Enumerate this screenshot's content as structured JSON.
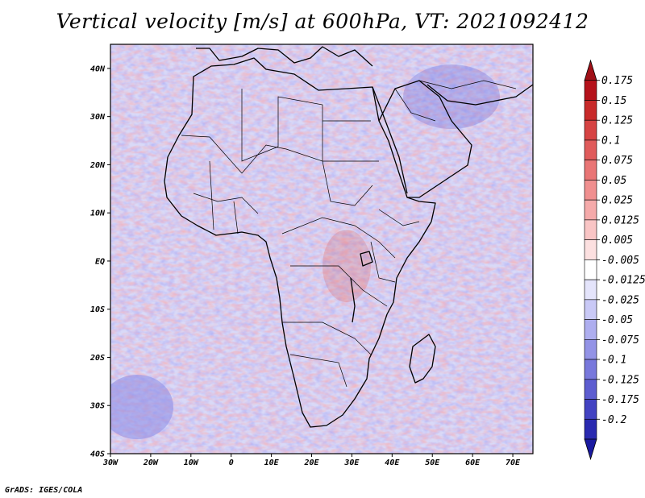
{
  "title": "Vertical velocity [m/s] at 600hPa, VT: 2021092412",
  "footer": "GrADS: IGES/COLA",
  "map": {
    "lon_range": [
      -30,
      75
    ],
    "lat_range": [
      -40,
      45
    ],
    "lon_ticks": [
      {
        "value": -30,
        "label": "30W"
      },
      {
        "value": -20,
        "label": "20W"
      },
      {
        "value": -10,
        "label": "10W"
      },
      {
        "value": 0,
        "label": "0"
      },
      {
        "value": 10,
        "label": "10E"
      },
      {
        "value": 20,
        "label": "20E"
      },
      {
        "value": 30,
        "label": "30E"
      },
      {
        "value": 40,
        "label": "40E"
      },
      {
        "value": 50,
        "label": "50E"
      },
      {
        "value": 60,
        "label": "60E"
      },
      {
        "value": 70,
        "label": "70E"
      }
    ],
    "lat_ticks": [
      {
        "value": 40,
        "label": "40N"
      },
      {
        "value": 30,
        "label": "30N"
      },
      {
        "value": 20,
        "label": "20N"
      },
      {
        "value": 10,
        "label": "10N"
      },
      {
        "value": 0,
        "label": "EQ"
      },
      {
        "value": -10,
        "label": "10S"
      },
      {
        "value": -20,
        "label": "20S"
      },
      {
        "value": -30,
        "label": "30S"
      },
      {
        "value": -40,
        "label": "40S"
      }
    ]
  },
  "colorbar": {
    "levels": [
      {
        "label": "0.175",
        "color": "#b5121b"
      },
      {
        "label": "0.15",
        "color": "#c82a2a"
      },
      {
        "label": "0.125",
        "color": "#d64343"
      },
      {
        "label": "0.1",
        "color": "#e05b5b"
      },
      {
        "label": "0.075",
        "color": "#e97575"
      },
      {
        "label": "0.05",
        "color": "#f08f8f"
      },
      {
        "label": "0.025",
        "color": "#f5aaaa"
      },
      {
        "label": "0.0125",
        "color": "#f9c5c5"
      },
      {
        "label": "0.005",
        "color": "#fce0e0"
      },
      {
        "label": "-0.005",
        "color": "#ffffff"
      },
      {
        "label": "-0.0125",
        "color": "#e4e4fb"
      },
      {
        "label": "-0.025",
        "color": "#c9c9f6"
      },
      {
        "label": "-0.05",
        "color": "#aeaeef"
      },
      {
        "label": "-0.075",
        "color": "#9393e6"
      },
      {
        "label": "-0.1",
        "color": "#7878dc"
      },
      {
        "label": "-0.125",
        "color": "#5d5dd0"
      },
      {
        "label": "-0.175",
        "color": "#4343c2"
      },
      {
        "label": "-0.2",
        "color": "#2a2ab0"
      }
    ],
    "top_color": "#a01017",
    "bottom_color": "#1a1aa0"
  }
}
